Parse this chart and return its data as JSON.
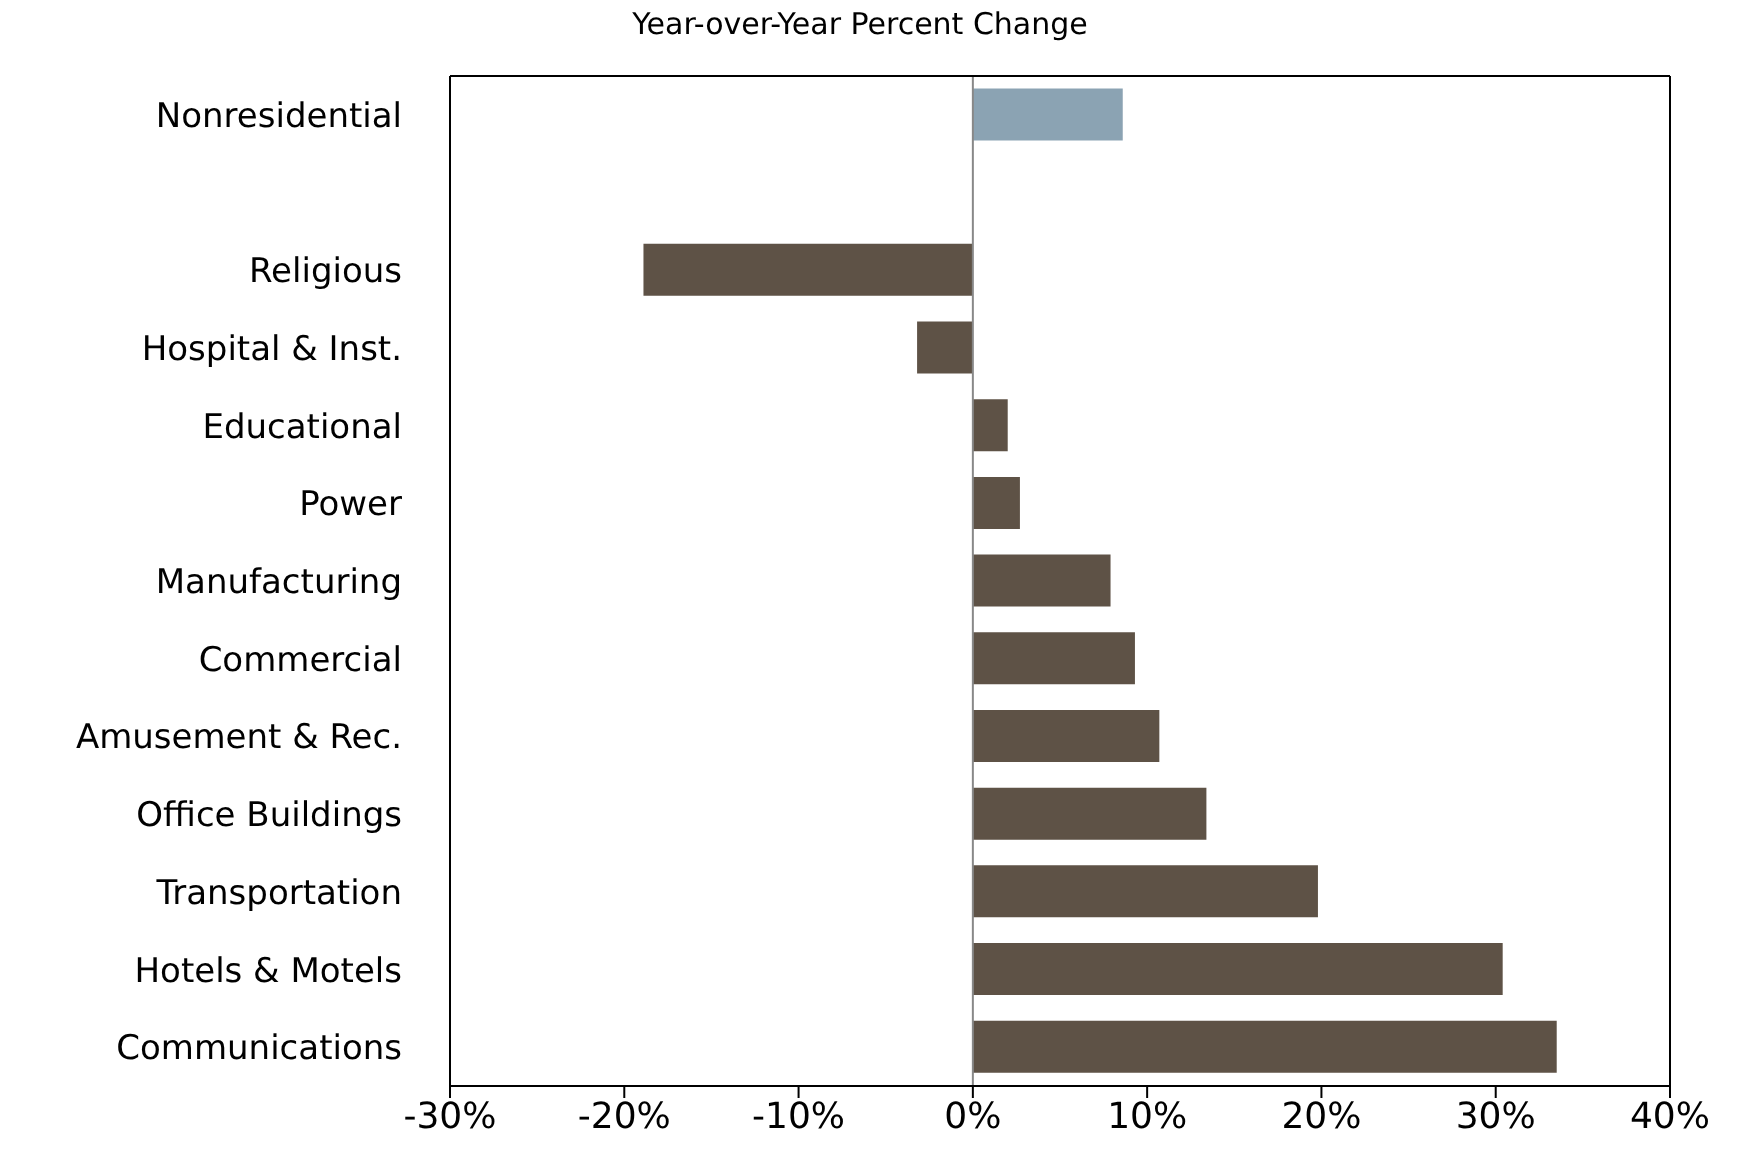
{
  "chart_data": {
    "type": "bar",
    "orientation": "horizontal",
    "subtitle": "Year-over-Year Percent Change",
    "categories": [
      "Nonresidential",
      null,
      "Religious",
      "Hospital & Inst.",
      "Educational",
      "Power",
      "Manufacturing",
      "Commercial",
      "Amusement & Rec.",
      "Office Buildings",
      "Transportation",
      "Hotels & Motels",
      "Communications"
    ],
    "values": [
      8.6,
      null,
      -18.9,
      -3.2,
      2.0,
      2.7,
      7.9,
      9.3,
      10.7,
      13.4,
      19.8,
      30.4,
      33.5
    ],
    "colors": [
      "#8ba3b3",
      null,
      "#5e5246",
      "#5e5246",
      "#5e5246",
      "#5e5246",
      "#5e5246",
      "#5e5246",
      "#5e5246",
      "#5e5246",
      "#5e5246",
      "#5e5246",
      "#5e5246"
    ],
    "xlim": [
      -30,
      40
    ],
    "xticks": [
      {
        "value": -30,
        "label": "-30%"
      },
      {
        "value": -20,
        "label": "-20%"
      },
      {
        "value": -10,
        "label": "-10%"
      },
      {
        "value": 0,
        "label": "0%"
      },
      {
        "value": 10,
        "label": "10%"
      },
      {
        "value": 20,
        "label": "20%"
      },
      {
        "value": 30,
        "label": "30%"
      },
      {
        "value": 40,
        "label": "40%"
      }
    ],
    "ref_lines": [
      {
        "axis": "x",
        "value": 0,
        "color": "#888888"
      }
    ]
  }
}
